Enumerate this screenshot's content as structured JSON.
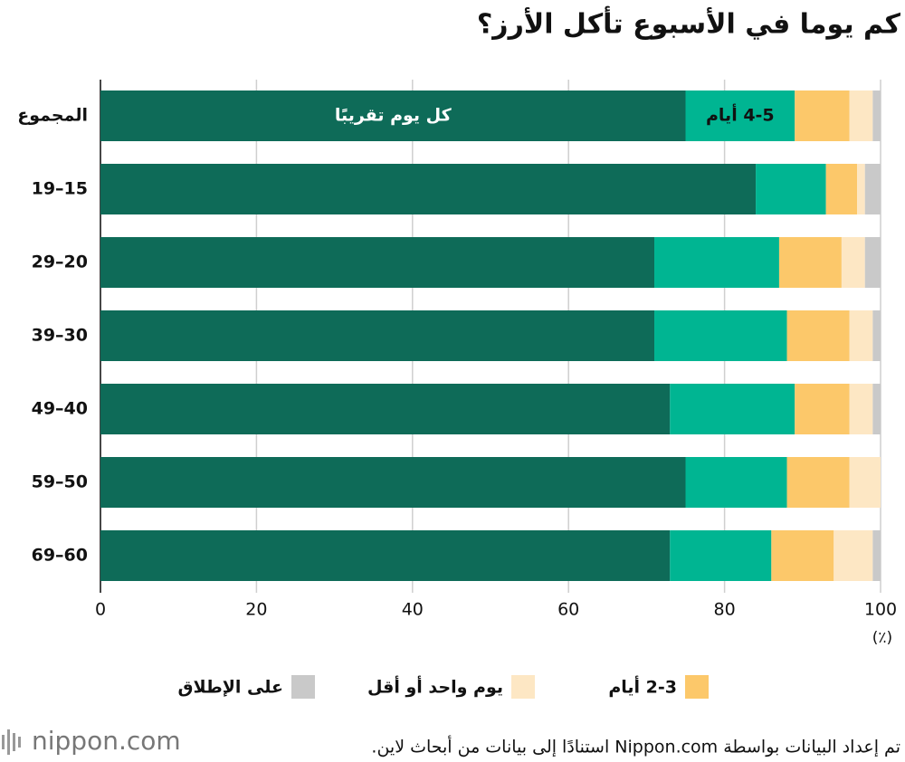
{
  "chart_data": {
    "type": "bar",
    "orientation": "horizontal",
    "stacked": true,
    "title": "كم يوما في الأسبوع تأكل الأرز؟",
    "categories": [
      "المجموع",
      "15–19",
      "20–29",
      "30–39",
      "40–49",
      "50–59",
      "60–69"
    ],
    "series": [
      {
        "name": "كل يوم تقريبًا",
        "color": "#0e6b58",
        "values": [
          75,
          84,
          71,
          71,
          73,
          75,
          73
        ]
      },
      {
        "name": "4-5 أيام",
        "color": "#00b592",
        "values": [
          14,
          9,
          16,
          17,
          16,
          13,
          13
        ]
      },
      {
        "name": "2-3 أيام",
        "color": "#fcc86a",
        "values": [
          7,
          4,
          8,
          8,
          7,
          8,
          8
        ]
      },
      {
        "name": "يوم واحد أو أقل",
        "color": "#fde7c4",
        "values": [
          3,
          1,
          3,
          3,
          3,
          4,
          5
        ]
      },
      {
        "name": "على الإطلاق",
        "color": "#c9c9c9",
        "values": [
          1,
          2,
          2,
          1,
          1,
          0,
          1
        ]
      }
    ],
    "xlim": [
      0,
      100
    ],
    "xticks": [
      0,
      20,
      40,
      60,
      80,
      100
    ],
    "grid": true,
    "unit_label": "(٪)",
    "source": "تم إعداد البيانات بواسطة Nippon.com استنادًا إلى بيانات من أبحاث لاين.",
    "logo": "nippon.com"
  }
}
